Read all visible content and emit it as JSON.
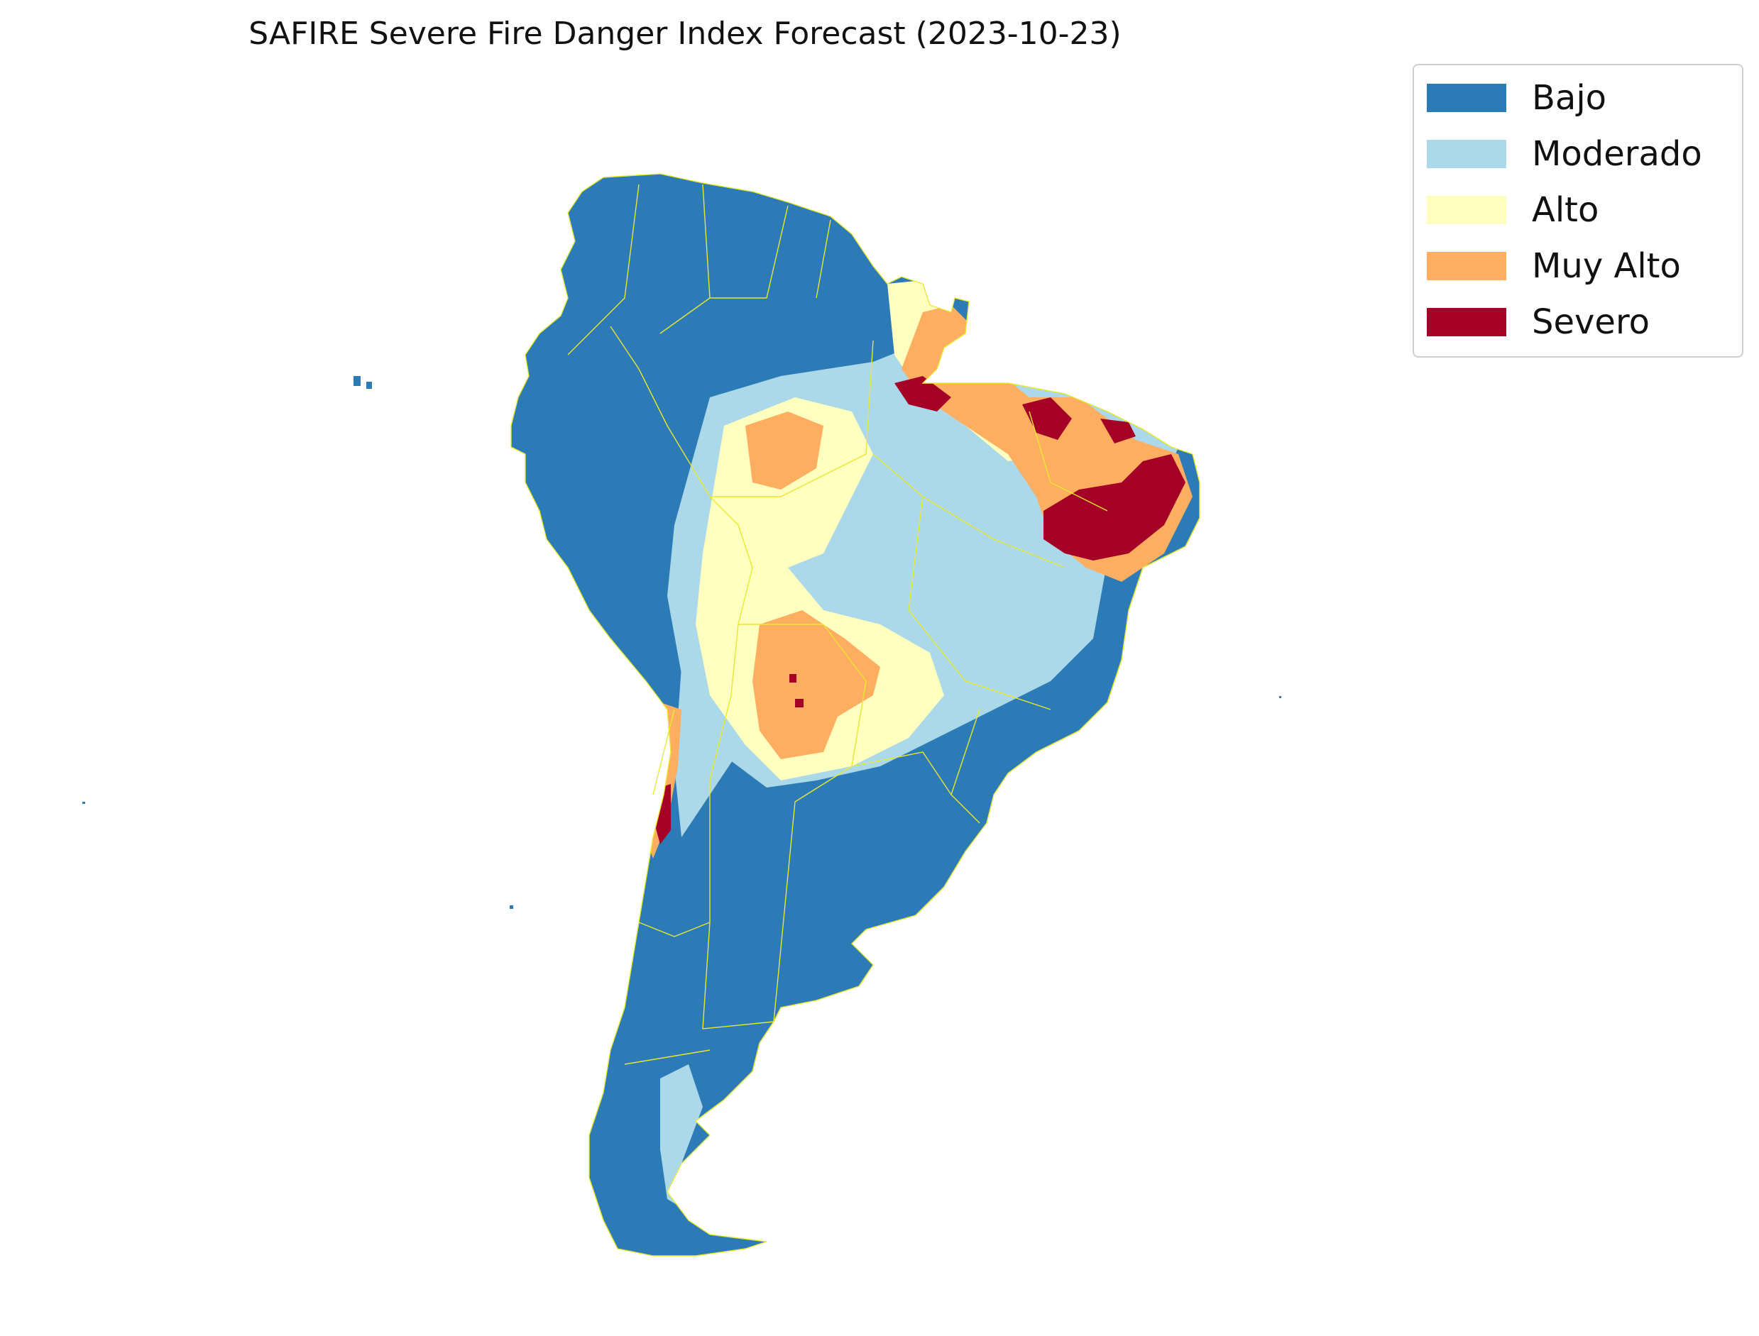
{
  "title": "SAFIRE Severe Fire Danger Index Forecast (2023-10-23)",
  "legend": [
    {
      "label": "Bajo",
      "color": "#2c7bb6"
    },
    {
      "label": "Moderado",
      "color": "#abd9e9"
    },
    {
      "label": "Alto",
      "color": "#ffffbf"
    },
    {
      "label": "Muy Alto",
      "color": "#fdae61"
    },
    {
      "label": "Severo",
      "color": "#a50026"
    }
  ],
  "border_color": "#e8e830"
}
